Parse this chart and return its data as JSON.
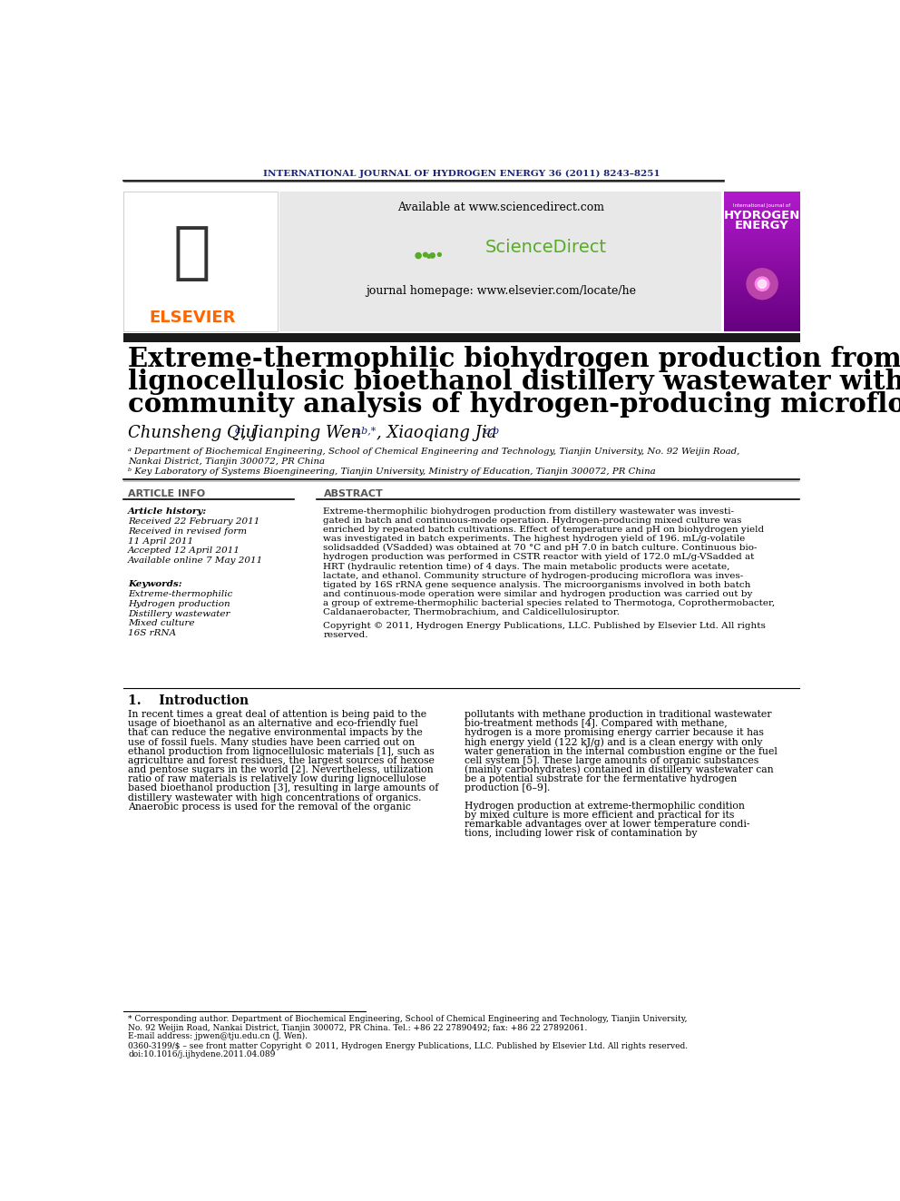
{
  "journal_header": "INTERNATIONAL JOURNAL OF HYDROGEN ENERGY 36 (2011) 8243–8251",
  "title_line1": "Extreme-thermophilic biohydrogen production from",
  "title_line2": "lignocellulosic bioethanol distillery wastewater with",
  "title_line3": "community analysis of hydrogen-producing microflora",
  "affil_a": "ᵃ Department of Biochemical Engineering, School of Chemical Engineering and Technology, Tianjin University, No. 92 Weijin Road,",
  "affil_a2": "Nankai District, Tianjin 300072, PR China",
  "affil_b": "ᵇ Key Laboratory of Systems Bioengineering, Tianjin University, Ministry of Education, Tianjin 300072, PR China",
  "section_left": "ARTICLE INFO",
  "section_right": "ABSTRACT",
  "article_history_label": "Article history:",
  "received1": "Received 22 February 2011",
  "received_revised": "Received in revised form",
  "received_revised2": "11 April 2011",
  "accepted": "Accepted 12 April 2011",
  "available": "Available online 7 May 2011",
  "keywords_label": "Keywords:",
  "kw1": "Extreme-thermophilic",
  "kw2": "Hydrogen production",
  "kw3": "Distillery wastewater",
  "kw4": "Mixed culture",
  "kw5": "16S rRNA",
  "abstract_lines": [
    "Extreme-thermophilic biohydrogen production from distillery wastewater was investi-",
    "gated in batch and continuous-mode operation. Hydrogen-producing mixed culture was",
    "enriched by repeated batch cultivations. Effect of temperature and pH on biohydrogen yield",
    "was investigated in batch experiments. The highest hydrogen yield of 196. mL/g-volatile",
    "solidsadded (VSadded) was obtained at 70 °C and pH 7.0 in batch culture. Continuous bio-",
    "hydrogen production was performed in CSTR reactor with yield of 172.0 mL/g-VSadded at",
    "HRT (hydraulic retention time) of 4 days. The main metabolic products were acetate,",
    "lactate, and ethanol. Community structure of hydrogen-producing microflora was inves-",
    "tigated by 16S rRNA gene sequence analysis. The microorganisms involved in both batch",
    "and continuous-mode operation were similar and hydrogen production was carried out by",
    "a group of extreme-thermophilic bacterial species related to Thermotoga, Coprothermobacter,",
    "Caldanaerobacter, Thermobrachium, and Caldicellulosiruptor."
  ],
  "copyright_lines": [
    "Copyright © 2011, Hydrogen Energy Publications, LLC. Published by Elsevier Ltd. All rights",
    "reserved."
  ],
  "intro_section": "1.    Introduction",
  "intro_para1_lines": [
    "In recent times a great deal of attention is being paid to the",
    "usage of bioethanol as an alternative and eco-friendly fuel",
    "that can reduce the negative environmental impacts by the",
    "use of fossil fuels. Many studies have been carried out on",
    "ethanol production from lignocellulosic materials [1], such as",
    "agriculture and forest residues, the largest sources of hexose",
    "and pentose sugars in the world [2]. Nevertheless, utilization",
    "ratio of raw materials is relatively low during lignocellulose",
    "based bioethanol production [3], resulting in large amounts of",
    "distillery wastewater with high concentrations of organics.",
    "Anaerobic process is used for the removal of the organic"
  ],
  "intro_para2_lines": [
    "pollutants with methane production in traditional wastewater",
    "bio-treatment methods [4]. Compared with methane,",
    "hydrogen is a more promising energy carrier because it has",
    "high energy yield (122 kJ/g) and is a clean energy with only",
    "water generation in the internal combustion engine or the fuel",
    "cell system [5]. These large amounts of organic substances",
    "(mainly carbohydrates) contained in distillery wastewater can",
    "be a potential substrate for the fermentative hydrogen",
    "production [6–9]."
  ],
  "intro_para3_lines": [
    "Hydrogen production at extreme-thermophilic condition",
    "by mixed culture is more efficient and practical for its",
    "remarkable advantages over at lower temperature condi-",
    "tions, including lower risk of contamination by"
  ],
  "footnote1": "* Corresponding author. Department of Biochemical Engineering, School of Chemical Engineering and Technology, Tianjin University,",
  "footnote2": "No. 92 Weijin Road, Nankai District, Tianjin 300072, PR China. Tel.: +86 22 27890492; fax: +86 22 27892061.",
  "footnote3": "E-mail address: jpwen@tju.edu.cn (J. Wen).",
  "footnote4": "0360-3199/$ – see front matter Copyright © 2011, Hydrogen Energy Publications, LLC. Published by Elsevier Ltd. All rights reserved.",
  "footnote5": "doi:10.1016/j.ijhydene.2011.04.089",
  "elsevier_color": "#ff6600",
  "sd_bg": "#e8e8e8",
  "black_bar": "#1a1a1a",
  "journal_color": "#1a237e"
}
